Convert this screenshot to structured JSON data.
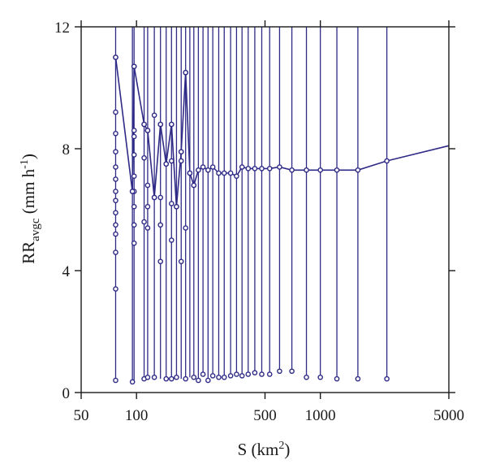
{
  "chart_data": {
    "type": "line",
    "xlabel": {
      "base": "S (km",
      "sup": "2",
      "tail": ")"
    },
    "ylabel": {
      "base": "RR",
      "sub": "avgc",
      "unit_base": " (mm h",
      "unit_sup": "-1",
      "unit_tail": ")"
    },
    "xscale": "log",
    "xlim": [
      50,
      5000
    ],
    "ylim": [
      0,
      12
    ],
    "xticks": [
      50,
      100,
      500,
      1000,
      5000
    ],
    "xtick_labels": [
      "50",
      "100",
      "500",
      "1000",
      "5000"
    ],
    "yticks": [
      0,
      4,
      8,
      12
    ],
    "ytick_labels": [
      "0",
      "4",
      "8",
      "12"
    ],
    "grid": false,
    "legend": "none",
    "color": "#2e2a86",
    "series": [
      {
        "x": [
          77,
          95,
          97,
          110,
          115,
          125,
          135,
          145,
          155,
          165,
          175,
          185,
          195,
          205,
          217,
          230,
          245,
          260,
          280,
          300,
          325,
          350,
          375,
          405,
          440,
          480,
          530,
          600,
          700,
          840,
          1000,
          1230,
          1600,
          2300,
          5000
        ],
        "y": [
          11.0,
          6.6,
          10.7,
          8.8,
          8.6,
          6.4,
          8.8,
          7.5,
          8.8,
          6.1,
          7.9,
          10.5,
          7.2,
          6.8,
          7.3,
          7.4,
          7.3,
          7.4,
          7.2,
          7.2,
          7.2,
          7.1,
          7.4,
          7.35,
          7.35,
          7.35,
          7.35,
          7.4,
          7.3,
          7.3,
          7.3,
          7.3,
          7.3,
          7.6,
          8.1
        ]
      }
    ],
    "spread": [
      {
        "x": 77,
        "ymin": 0.4,
        "points": [
          11.0,
          9.2,
          8.5,
          7.9,
          7.4,
          7.0,
          6.6,
          6.3,
          5.9,
          5.5,
          5.2,
          4.6,
          3.4,
          0.4
        ]
      },
      {
        "x": 95,
        "ymin": 0.35,
        "points": [
          6.6,
          0.35
        ]
      },
      {
        "x": 97,
        "ymin": 0.4,
        "points": [
          10.7,
          8.6,
          8.4,
          7.8,
          7.1,
          6.6,
          6.1,
          5.5,
          4.9
        ]
      },
      {
        "x": 110,
        "ymin": 0.45,
        "points": [
          8.8,
          7.7,
          5.6,
          0.45
        ]
      },
      {
        "x": 115,
        "ymin": 0.5,
        "points": [
          8.6,
          6.8,
          6.1,
          5.4,
          0.5
        ]
      },
      {
        "x": 125,
        "ymin": 0.5,
        "points": [
          9.1,
          6.4,
          0.5
        ]
      },
      {
        "x": 135,
        "ymin": 0.45,
        "points": [
          8.8,
          6.4,
          5.5,
          4.3
        ]
      },
      {
        "x": 145,
        "ymin": 0.45,
        "points": [
          7.5,
          0.45
        ]
      },
      {
        "x": 155,
        "ymin": 0.45,
        "points": [
          8.8,
          7.6,
          6.2,
          5.0,
          0.45
        ]
      },
      {
        "x": 165,
        "ymin": 0.5,
        "points": [
          6.1,
          0.5
        ]
      },
      {
        "x": 175,
        "ymin": 0.45,
        "points": [
          7.9,
          7.6,
          4.3
        ]
      },
      {
        "x": 185,
        "ymin": 0.45,
        "points": [
          10.5,
          5.4,
          0.45
        ]
      },
      {
        "x": 195,
        "ymin": 0.5,
        "points": [
          7.2
        ]
      },
      {
        "x": 205,
        "ymin": 0.5,
        "points": [
          6.8,
          0.5
        ]
      },
      {
        "x": 217,
        "ymin": 0.4,
        "points": [
          0.4
        ]
      },
      {
        "x": 230,
        "ymin": 0.6,
        "points": [
          0.6
        ]
      },
      {
        "x": 245,
        "ymin": 0.4,
        "points": [
          0.4
        ]
      },
      {
        "x": 260,
        "ymin": 0.55,
        "points": [
          0.55
        ]
      },
      {
        "x": 280,
        "ymin": 0.5,
        "points": [
          0.5
        ]
      },
      {
        "x": 300,
        "ymin": 0.5,
        "points": [
          0.5
        ]
      },
      {
        "x": 325,
        "ymin": 0.55,
        "points": [
          0.55
        ]
      },
      {
        "x": 350,
        "ymin": 0.6,
        "points": [
          0.6
        ]
      },
      {
        "x": 375,
        "ymin": 0.55,
        "points": [
          0.55
        ]
      },
      {
        "x": 405,
        "ymin": 0.6,
        "points": [
          0.6
        ]
      },
      {
        "x": 440,
        "ymin": 0.65,
        "points": [
          0.65
        ]
      },
      {
        "x": 480,
        "ymin": 0.6,
        "points": [
          0.6
        ]
      },
      {
        "x": 530,
        "ymin": 0.6,
        "points": [
          0.6
        ]
      },
      {
        "x": 600,
        "ymin": 0.7,
        "points": [
          0.7
        ]
      },
      {
        "x": 700,
        "ymin": 0.7,
        "points": [
          0.7
        ]
      },
      {
        "x": 840,
        "ymin": 0.5,
        "points": [
          0.5
        ]
      },
      {
        "x": 1000,
        "ymin": 0.5,
        "points": [
          0.5
        ]
      },
      {
        "x": 1230,
        "ymin": 0.45,
        "points": [
          0.45
        ]
      },
      {
        "x": 1600,
        "ymin": 0.45,
        "points": [
          0.45
        ]
      },
      {
        "x": 2300,
        "ymin": 0.45,
        "points": [
          0.45
        ]
      }
    ]
  }
}
